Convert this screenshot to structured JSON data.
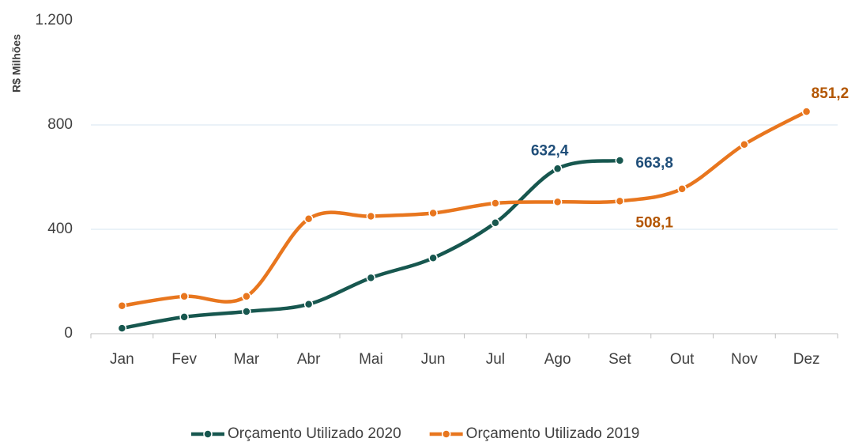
{
  "chart_data": {
    "type": "line",
    "y_label": "R$ Milhões",
    "categories": [
      "Jan",
      "Fev",
      "Mar",
      "Abr",
      "Mai",
      "Jun",
      "Jul",
      "Ago",
      "Set",
      "Out",
      "Nov",
      "Dez"
    ],
    "series": [
      {
        "name": "Orçamento Utilizado 2020",
        "color": "#17574f",
        "label_color": "#1f4e79",
        "values": [
          21,
          64,
          85,
          113,
          214,
          290,
          425,
          632.4,
          663.8,
          null,
          null,
          null
        ],
        "value_labels": [
          null,
          null,
          null,
          null,
          null,
          null,
          null,
          "632,4",
          "663,8",
          null,
          null,
          null
        ]
      },
      {
        "name": "Orçamento Utilizado 2019",
        "color": "#e8761e",
        "label_color": "#b35600",
        "values": [
          107,
          143,
          143,
          440,
          450,
          462,
          500,
          505,
          508.1,
          555,
          725,
          851.2
        ],
        "value_labels": [
          null,
          null,
          null,
          null,
          null,
          null,
          null,
          null,
          "508,1",
          null,
          null,
          "851,2"
        ]
      }
    ],
    "ylim": [
      0,
      1200
    ],
    "yticks": [
      0,
      400,
      800,
      {
        "value": 1200,
        "label": "1.200"
      }
    ],
    "grid": true,
    "legend": "bottom"
  }
}
